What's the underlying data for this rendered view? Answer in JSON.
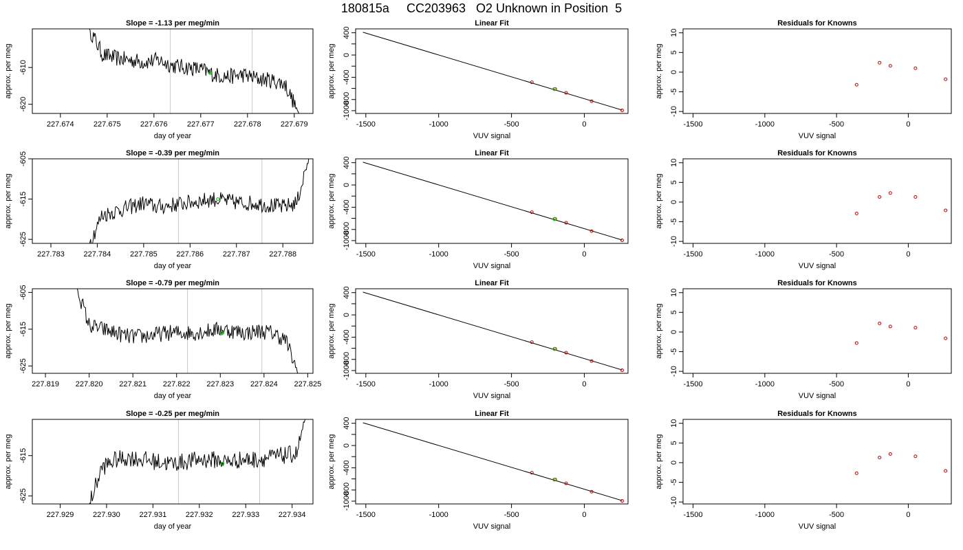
{
  "title": "180815a     CC203963   O2 Unknown in Position  5",
  "colors": {
    "series": "#000000",
    "marker_green": "#00cc00",
    "marker_red": "#cc0000",
    "gridline": "#c8c8c8"
  },
  "chart_data": [
    {
      "type": "line",
      "title": "Slope =  -1.13  per meg/min",
      "xlabel": "day of year",
      "ylabel": "approx. per meg",
      "xlim": [
        227.6734,
        227.6794
      ],
      "ylim": [
        -622.5,
        -599.5
      ],
      "xticks": [
        227.674,
        227.675,
        227.676,
        227.677,
        227.678,
        227.679
      ],
      "xticklabels": [
        "227.674",
        "227.675",
        "227.676",
        "227.677",
        "227.678",
        "227.679"
      ],
      "yticks": [
        -610,
        -620
      ],
      "yticklabels": [
        "-610",
        "-620"
      ],
      "vlines": [
        227.67635,
        227.6781
      ],
      "series_x": [
        227.6746,
        227.6749,
        227.6752,
        227.6755,
        227.6758,
        227.6761,
        227.6764,
        227.6767,
        227.677,
        227.6773,
        227.6776,
        227.6779,
        227.6782,
        227.6785,
        227.6788,
        227.6791
      ],
      "series_y": [
        -599,
        -606.5,
        -607.5,
        -608,
        -608.5,
        -608,
        -609.5,
        -610,
        -610.5,
        -612,
        -612.5,
        -612,
        -613,
        -613.5,
        -614.5,
        -622.5
      ],
      "marker": {
        "x": 227.6772,
        "y": -611.5
      },
      "noise": 2.2
    },
    {
      "type": "scatter",
      "title": "Linear Fit",
      "xlabel": "VUV signal",
      "ylabel": "approx. per meg",
      "xlim": [
        -1570,
        300
      ],
      "ylim": [
        -1050,
        470
      ],
      "xticks": [
        -1500,
        -1000,
        -500,
        0
      ],
      "xticklabels": [
        "-1500",
        "-1000",
        "-500",
        "0"
      ],
      "yticks": [
        400,
        200,
        0,
        -200,
        -400,
        -600,
        -800,
        -1000
      ],
      "yticklabels": [
        "400",
        "",
        "0",
        "",
        "-400",
        "",
        "-800",
        "-1000"
      ],
      "fit_line": [
        [
          -1520,
          410
        ],
        [
          260,
          -990
        ]
      ],
      "red_points": [
        [
          -360,
          -490
        ],
        [
          -200,
          -610
        ],
        [
          -125,
          -680
        ],
        [
          50,
          -830
        ],
        [
          260,
          -995
        ]
      ],
      "green_points": [
        [
          -205,
          -612
        ]
      ]
    },
    {
      "type": "scatter",
      "title": "Residuals for Knowns",
      "xlabel": "VUV signal",
      "ylabel": "approx. per meg",
      "xlim": [
        -1570,
        300
      ],
      "ylim": [
        -10.5,
        11
      ],
      "xticks": [
        -1500,
        -1000,
        -500,
        0
      ],
      "xticklabels": [
        "-1500",
        "-1000",
        "-500",
        "0"
      ],
      "yticks": [
        10,
        5,
        0,
        -5,
        -10
      ],
      "yticklabels": [
        "10",
        "5",
        "0",
        "-5",
        "-10"
      ],
      "red_points": [
        [
          -360,
          -3.2
        ],
        [
          -200,
          2.4
        ],
        [
          -125,
          1.6
        ],
        [
          50,
          1.0
        ],
        [
          260,
          -1.8
        ]
      ]
    },
    {
      "type": "line",
      "title": "Slope =  -0.39  per meg/min",
      "xlabel": "day of year",
      "ylabel": "approx. per meg",
      "xlim": [
        227.7826,
        227.78865
      ],
      "ylim": [
        -626,
        -605
      ],
      "xticks": [
        227.783,
        227.784,
        227.785,
        227.786,
        227.787,
        227.788
      ],
      "xticklabels": [
        "227.783",
        "227.784",
        "227.785",
        "227.786",
        "227.787",
        "227.788"
      ],
      "yticks": [
        -605,
        -615,
        -625
      ],
      "yticklabels": [
        "-605",
        "-615",
        "-625"
      ],
      "vlines": [
        227.78575,
        227.78755
      ],
      "series_x": [
        227.7838,
        227.7841,
        227.7844,
        227.7847,
        227.785,
        227.7853,
        227.7856,
        227.7859,
        227.7862,
        227.7865,
        227.7868,
        227.7871,
        227.7874,
        227.7877,
        227.788,
        227.7883,
        227.7886
      ],
      "series_y": [
        -627,
        -619,
        -618,
        -617,
        -616,
        -617,
        -616.5,
        -616,
        -615.5,
        -615,
        -615.5,
        -616,
        -616,
        -616.5,
        -617,
        -616,
        -603
      ],
      "marker": {
        "x": 227.7866,
        "y": -615
      },
      "noise": 2.0
    },
    {
      "type": "scatter",
      "title": "Linear Fit",
      "xlabel": "VUV signal",
      "ylabel": "approx. per meg",
      "xlim": [
        -1570,
        300
      ],
      "ylim": [
        -1050,
        470
      ],
      "xticks": [
        -1500,
        -1000,
        -500,
        0
      ],
      "xticklabels": [
        "-1500",
        "-1000",
        "-500",
        "0"
      ],
      "yticks": [
        400,
        200,
        0,
        -200,
        -400,
        -600,
        -800,
        -1000
      ],
      "yticklabels": [
        "400",
        "",
        "0",
        "",
        "-400",
        "",
        "-800",
        "-1000"
      ],
      "fit_line": [
        [
          -1520,
          410
        ],
        [
          260,
          -990
        ]
      ],
      "red_points": [
        [
          -360,
          -490
        ],
        [
          -200,
          -610
        ],
        [
          -125,
          -680
        ],
        [
          50,
          -830
        ],
        [
          260,
          -995
        ]
      ],
      "green_points": [
        [
          -205,
          -612
        ]
      ]
    },
    {
      "type": "scatter",
      "title": "Residuals for Knowns",
      "xlabel": "VUV signal",
      "ylabel": "approx. per meg",
      "xlim": [
        -1570,
        300
      ],
      "ylim": [
        -10.5,
        11
      ],
      "xticks": [
        -1500,
        -1000,
        -500,
        0
      ],
      "xticklabels": [
        "-1500",
        "-1000",
        "-500",
        "0"
      ],
      "yticks": [
        10,
        5,
        0,
        -5,
        -10
      ],
      "yticklabels": [
        "10",
        "5",
        "0",
        "-5",
        "-10"
      ],
      "red_points": [
        [
          -360,
          -2.9
        ],
        [
          -200,
          1.3
        ],
        [
          -125,
          2.3
        ],
        [
          50,
          1.3
        ],
        [
          260,
          -2.1
        ]
      ]
    },
    {
      "type": "line",
      "title": "Slope =  -0.79  per meg/min",
      "xlabel": "day of year",
      "ylabel": "approx. per meg",
      "xlim": [
        227.8187,
        227.82512
      ],
      "ylim": [
        -627,
        -604
      ],
      "xticks": [
        227.819,
        227.82,
        227.821,
        227.822,
        227.823,
        227.824,
        227.825
      ],
      "xticklabels": [
        "227.819",
        "227.820",
        "227.821",
        "227.822",
        "227.823",
        "227.824",
        "227.825"
      ],
      "yticks": [
        -605,
        -615,
        -625
      ],
      "yticklabels": [
        "-605",
        "-615",
        "-625"
      ],
      "vlines": [
        227.82225,
        227.82395
      ],
      "series_x": [
        227.8197,
        227.82,
        227.8203,
        227.8206,
        227.8209,
        227.8212,
        227.8215,
        227.8218,
        227.8221,
        227.8224,
        227.8227,
        227.823,
        227.8233,
        227.8236,
        227.8239,
        227.8242,
        227.8245,
        227.8248
      ],
      "series_y": [
        -603,
        -614,
        -615,
        -616,
        -617,
        -617,
        -616.5,
        -616,
        -616,
        -616,
        -615.5,
        -615,
        -615.5,
        -616,
        -615.5,
        -616,
        -618,
        -628
      ],
      "marker": {
        "x": 227.82305,
        "y": -616
      },
      "noise": 2.2
    },
    {
      "type": "scatter",
      "title": "Linear Fit",
      "xlabel": "VUV signal",
      "ylabel": "approx. per meg",
      "xlim": [
        -1570,
        300
      ],
      "ylim": [
        -1050,
        470
      ],
      "xticks": [
        -1500,
        -1000,
        -500,
        0
      ],
      "xticklabels": [
        "-1500",
        "-1000",
        "-500",
        "0"
      ],
      "yticks": [
        400,
        200,
        0,
        -200,
        -400,
        -600,
        -800,
        -1000
      ],
      "yticklabels": [
        "400",
        "",
        "0",
        "",
        "-400",
        "",
        "-800",
        "-1000"
      ],
      "fit_line": [
        [
          -1520,
          410
        ],
        [
          260,
          -990
        ]
      ],
      "red_points": [
        [
          -360,
          -490
        ],
        [
          -200,
          -610
        ],
        [
          -125,
          -680
        ],
        [
          50,
          -830
        ],
        [
          260,
          -995
        ]
      ],
      "green_points": [
        [
          -205,
          -612
        ]
      ]
    },
    {
      "type": "scatter",
      "title": "Residuals for Knowns",
      "xlabel": "VUV signal",
      "ylabel": "approx. per meg",
      "xlim": [
        -1570,
        300
      ],
      "ylim": [
        -10.5,
        11
      ],
      "xticks": [
        -1500,
        -1000,
        -500,
        0
      ],
      "xticklabels": [
        "-1500",
        "-1000",
        "-500",
        "0"
      ],
      "yticks": [
        10,
        5,
        0,
        -5,
        -10
      ],
      "yticklabels": [
        "10",
        "5",
        "0",
        "-5",
        "-10"
      ],
      "red_points": [
        [
          -360,
          -2.8
        ],
        [
          -200,
          2.2
        ],
        [
          -125,
          1.4
        ],
        [
          50,
          1.1
        ],
        [
          260,
          -1.6
        ]
      ]
    },
    {
      "type": "line",
      "title": "Slope =  -0.25  per meg/min",
      "xlabel": "day of year",
      "ylabel": "approx. per meg",
      "xlim": [
        227.9284,
        227.93445
      ],
      "ylim": [
        -627,
        -606
      ],
      "xticks": [
        227.929,
        227.93,
        227.931,
        227.932,
        227.933,
        227.934
      ],
      "xticklabels": [
        "227.929",
        "227.930",
        "227.931",
        "227.932",
        "227.933",
        "227.934"
      ],
      "yticks": [
        -615,
        -625
      ],
      "yticklabels": [
        "-615",
        "-625"
      ],
      "vlines": [
        227.93155,
        227.9333
      ],
      "series_x": [
        227.9296,
        227.9299,
        227.9302,
        227.9305,
        227.9308,
        227.9311,
        227.9314,
        227.9317,
        227.932,
        227.9323,
        227.9326,
        227.9329,
        227.9332,
        227.9335,
        227.9338,
        227.9341,
        227.9343
      ],
      "series_y": [
        -628,
        -618,
        -616,
        -615.5,
        -616,
        -616.5,
        -617,
        -616.5,
        -616,
        -616,
        -616.5,
        -616,
        -616,
        -615.5,
        -615,
        -614.5,
        -605
      ],
      "marker": {
        "x": 227.9325,
        "y": -617
      },
      "noise": 2.2
    },
    {
      "type": "scatter",
      "title": "Linear Fit",
      "xlabel": "VUV signal",
      "ylabel": "approx. per meg",
      "xlim": [
        -1570,
        300
      ],
      "ylim": [
        -1050,
        470
      ],
      "xticks": [
        -1500,
        -1000,
        -500,
        0
      ],
      "xticklabels": [
        "-1500",
        "-1000",
        "-500",
        "0"
      ],
      "yticks": [
        400,
        200,
        0,
        -200,
        -400,
        -600,
        -800,
        -1000
      ],
      "yticklabels": [
        "400",
        "",
        "0",
        "",
        "-400",
        "",
        "-800",
        "-1000"
      ],
      "fit_line": [
        [
          -1520,
          410
        ],
        [
          260,
          -990
        ]
      ],
      "red_points": [
        [
          -360,
          -490
        ],
        [
          -200,
          -610
        ],
        [
          -125,
          -680
        ],
        [
          50,
          -830
        ],
        [
          260,
          -995
        ]
      ],
      "green_points": [
        [
          -205,
          -612
        ]
      ]
    },
    {
      "type": "scatter",
      "title": "Residuals for Knowns",
      "xlabel": "VUV signal",
      "ylabel": "approx. per meg",
      "xlim": [
        -1570,
        300
      ],
      "ylim": [
        -10.5,
        11
      ],
      "xticks": [
        -1500,
        -1000,
        -500,
        0
      ],
      "xticklabels": [
        "-1500",
        "-1000",
        "-500",
        "0"
      ],
      "yticks": [
        10,
        5,
        0,
        -5,
        -10
      ],
      "yticklabels": [
        "10",
        "5",
        "0",
        "-5",
        "-10"
      ],
      "red_points": [
        [
          -360,
          -2.7
        ],
        [
          -200,
          1.3
        ],
        [
          -125,
          2.2
        ],
        [
          50,
          1.6
        ],
        [
          260,
          -2.1
        ]
      ]
    }
  ]
}
